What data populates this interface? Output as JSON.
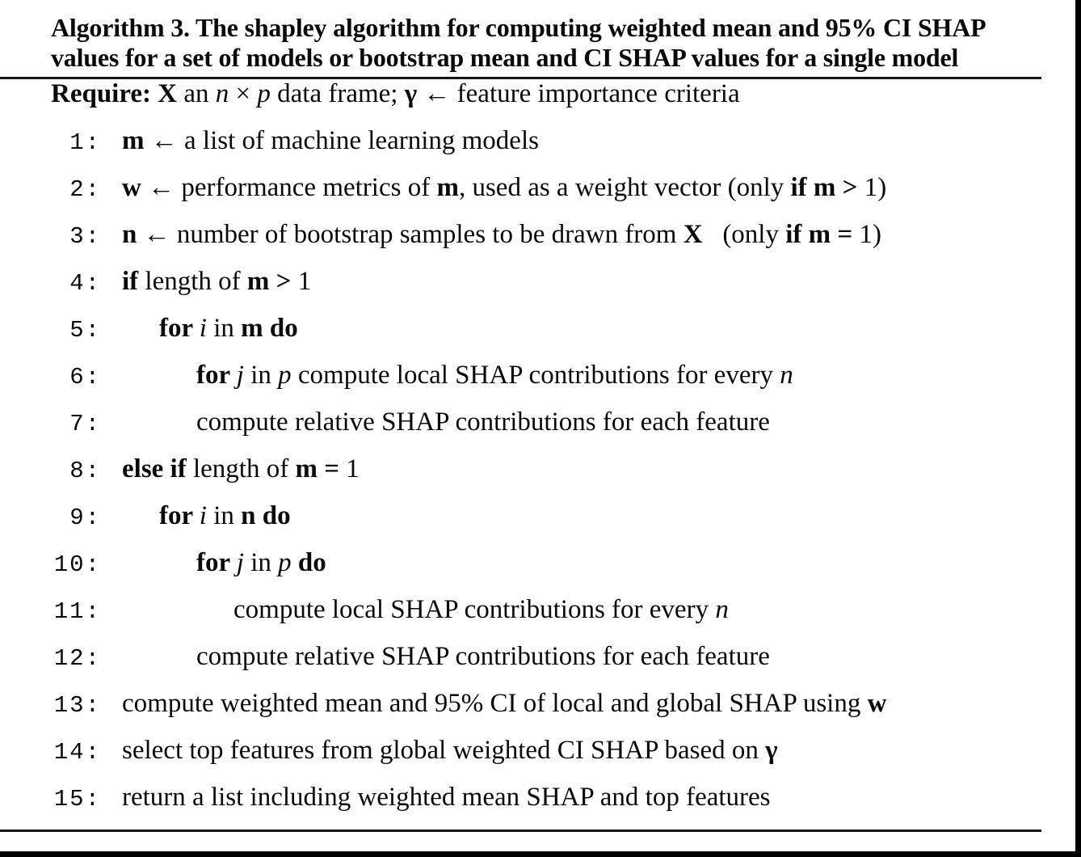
{
  "colors": {
    "text": "#0a0a0a",
    "background": "#ffffff",
    "rule": "#141414",
    "edge": "#000000"
  },
  "title": {
    "line1": "Algorithm 3. The shapley algorithm for computing weighted mean and 95% CI SHAP",
    "line2": "values for a set of models or bootstrap mean and CI SHAP values for a single model"
  },
  "algorithm": {
    "require": [
      {
        "t": "Require: X",
        "s": "b"
      },
      {
        "t": " an ",
        "s": "r"
      },
      {
        "t": "n",
        "s": "i"
      },
      {
        "t": " × ",
        "s": "r"
      },
      {
        "t": "p",
        "s": "i"
      },
      {
        "t": " data frame; ",
        "s": "r"
      },
      {
        "t": "γ",
        "s": "b"
      },
      {
        "t": " ← feature importance criteria",
        "s": "r"
      }
    ],
    "lines": [
      {
        "num": "1:",
        "indent": 0,
        "segments": [
          {
            "t": "m",
            "s": "b"
          },
          {
            "t": " ← a list of machine learning models",
            "s": "r"
          }
        ]
      },
      {
        "num": "2:",
        "indent": 0,
        "segments": [
          {
            "t": "w",
            "s": "b"
          },
          {
            "t": " ← performance metrics of ",
            "s": "r"
          },
          {
            "t": "m",
            "s": "b"
          },
          {
            "t": ", used as a weight vector (only ",
            "s": "r"
          },
          {
            "t": "if m > ",
            "s": "b"
          },
          {
            "t": "1)",
            "s": "r"
          }
        ]
      },
      {
        "num": "3:",
        "indent": 0,
        "segments": [
          {
            "t": "n",
            "s": "b"
          },
          {
            "t": " ← number of bootstrap samples to be drawn from ",
            "s": "r"
          },
          {
            "t": "X",
            "s": "b"
          },
          {
            "t": "   (only ",
            "s": "r"
          },
          {
            "t": "if m = ",
            "s": "b"
          },
          {
            "t": "1)",
            "s": "r"
          }
        ]
      },
      {
        "num": "4:",
        "indent": 0,
        "segments": [
          {
            "t": "if ",
            "s": "b"
          },
          {
            "t": "length of ",
            "s": "r"
          },
          {
            "t": "m > ",
            "s": "b"
          },
          {
            "t": "1",
            "s": "r"
          }
        ]
      },
      {
        "num": "5:",
        "indent": 1,
        "segments": [
          {
            "t": "for ",
            "s": "b"
          },
          {
            "t": "i",
            "s": "i"
          },
          {
            "t": " in ",
            "s": "r"
          },
          {
            "t": "m do",
            "s": "b"
          }
        ]
      },
      {
        "num": "6:",
        "indent": 2,
        "segments": [
          {
            "t": "for ",
            "s": "b"
          },
          {
            "t": "j",
            "s": "i"
          },
          {
            "t": " in ",
            "s": "r"
          },
          {
            "t": "p",
            "s": "i"
          },
          {
            "t": " compute local SHAP contributions for every ",
            "s": "r"
          },
          {
            "t": "n",
            "s": "i"
          }
        ]
      },
      {
        "num": "7:",
        "indent": 2,
        "segments": [
          {
            "t": "compute relative SHAP contributions for each feature",
            "s": "r"
          }
        ]
      },
      {
        "num": "8:",
        "indent": 0,
        "segments": [
          {
            "t": "else if ",
            "s": "b"
          },
          {
            "t": "length of ",
            "s": "r"
          },
          {
            "t": "m = ",
            "s": "b"
          },
          {
            "t": "1",
            "s": "r"
          }
        ]
      },
      {
        "num": "9:",
        "indent": 1,
        "segments": [
          {
            "t": "for ",
            "s": "b"
          },
          {
            "t": "i",
            "s": "i"
          },
          {
            "t": " in ",
            "s": "r"
          },
          {
            "t": "n do",
            "s": "b"
          }
        ]
      },
      {
        "num": "10:",
        "indent": 2,
        "segments": [
          {
            "t": "for ",
            "s": "b"
          },
          {
            "t": "j",
            "s": "i"
          },
          {
            "t": " in ",
            "s": "r"
          },
          {
            "t": "p",
            "s": "i"
          },
          {
            "t": " ",
            "s": "r"
          },
          {
            "t": "do",
            "s": "b"
          }
        ]
      },
      {
        "num": "11:",
        "indent": 3,
        "segments": [
          {
            "t": "compute local SHAP contributions for every ",
            "s": "r"
          },
          {
            "t": "n",
            "s": "i"
          }
        ]
      },
      {
        "num": "12:",
        "indent": 2,
        "segments": [
          {
            "t": "compute relative SHAP contributions for each feature",
            "s": "r"
          }
        ]
      },
      {
        "num": "13:",
        "indent": 0,
        "segments": [
          {
            "t": "compute weighted mean and 95% CI of local and global SHAP using ",
            "s": "r"
          },
          {
            "t": "w",
            "s": "b"
          }
        ]
      },
      {
        "num": "14:",
        "indent": 0,
        "segments": [
          {
            "t": "select top features from global weighted CI SHAP based on ",
            "s": "r"
          },
          {
            "t": "γ",
            "s": "b"
          }
        ]
      },
      {
        "num": "15:",
        "indent": 0,
        "segments": [
          {
            "t": "return a list including weighted mean SHAP and top features",
            "s": "r"
          }
        ]
      }
    ]
  }
}
